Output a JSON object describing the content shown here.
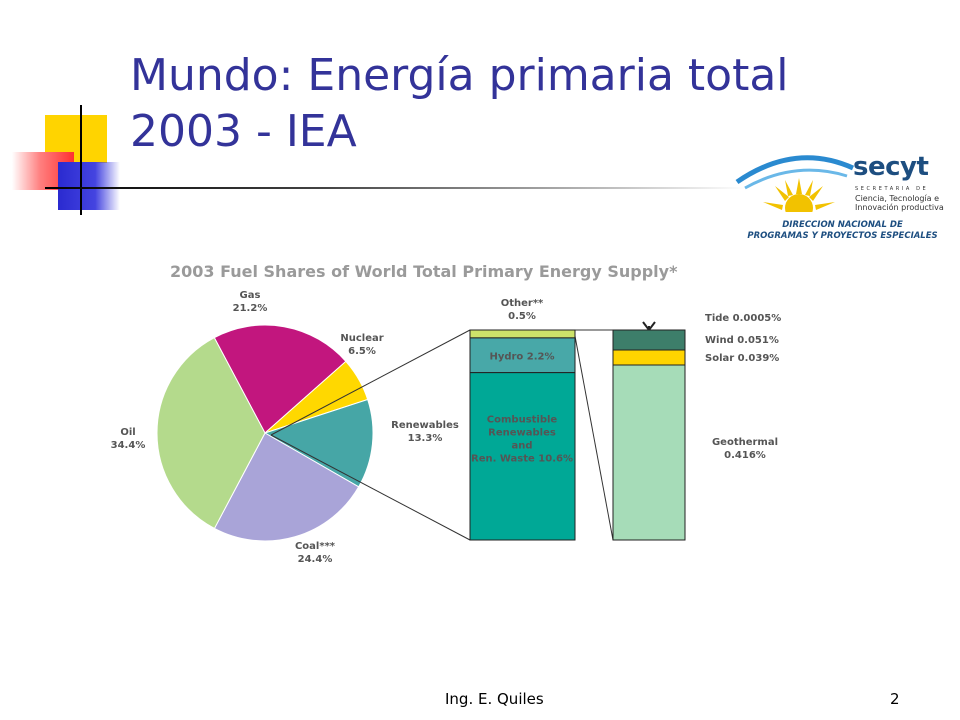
{
  "slide": {
    "title": "Mundo: Energía primaria total\n2003 - IEA",
    "footer": "Ing. E. Quiles",
    "page_number": "2"
  },
  "logo": {
    "name": "secyt",
    "sub1": "SECRETARIA DE",
    "sub2": "Ciencia, Tecnología e\nInnovación productiva",
    "direction": "DIRECCION NACIONAL DE\nPROGRAMAS Y PROYECTOS ESPECIALES"
  },
  "colors": {
    "title": "#333399",
    "oil": "#b4da8c",
    "gas": "#c2167e",
    "nuclear": "#ffd800",
    "renewables": "#46a6a6",
    "coal": "#a9a4d8",
    "other": "#cde36a",
    "hydro": "#48a8a8",
    "combustible": "#00a896",
    "tide": "#3d7e6a",
    "wind": "#3d7e6a",
    "solar": "#ffd400",
    "geothermal": "#a6dcb8"
  },
  "chart_data": {
    "type": "pie",
    "title": "2003 Fuel Shares of World Total Primary Energy Supply*",
    "pie": [
      {
        "key": "gas",
        "label": "Gas",
        "value": 21.2,
        "value_label": "21.2%"
      },
      {
        "key": "nuclear",
        "label": "Nuclear",
        "value": 6.5,
        "value_label": "6.5%"
      },
      {
        "key": "renewables",
        "label": "Renewables",
        "value": 13.3,
        "value_label": "13.3%"
      },
      {
        "key": "coal",
        "label": "Coal***",
        "value": 24.4,
        "value_label": "24.4%"
      },
      {
        "key": "oil",
        "label": "Oil",
        "value": 34.4,
        "value_label": "34.4%"
      }
    ],
    "renewables_breakdown": [
      {
        "key": "other",
        "label": "Other**",
        "value": 0.5,
        "value_label": "0.5%"
      },
      {
        "key": "hydro",
        "label": "Hydro",
        "value": 2.2,
        "value_label": "2.2%"
      },
      {
        "key": "combustible",
        "label": "Combustible\nRenewables\nand\nRen. Waste",
        "value": 10.6,
        "value_label": "10.6%"
      }
    ],
    "other_breakdown": [
      {
        "key": "tide",
        "label": "Tide",
        "value": 0.0005,
        "value_label": "0.0005%"
      },
      {
        "key": "wind",
        "label": "Wind",
        "value": 0.051,
        "value_label": "0.051%"
      },
      {
        "key": "solar",
        "label": "Solar",
        "value": 0.039,
        "value_label": "0.039%"
      },
      {
        "key": "geothermal",
        "label": "Geothermal",
        "value": 0.416,
        "value_label": "0.416%"
      }
    ]
  }
}
